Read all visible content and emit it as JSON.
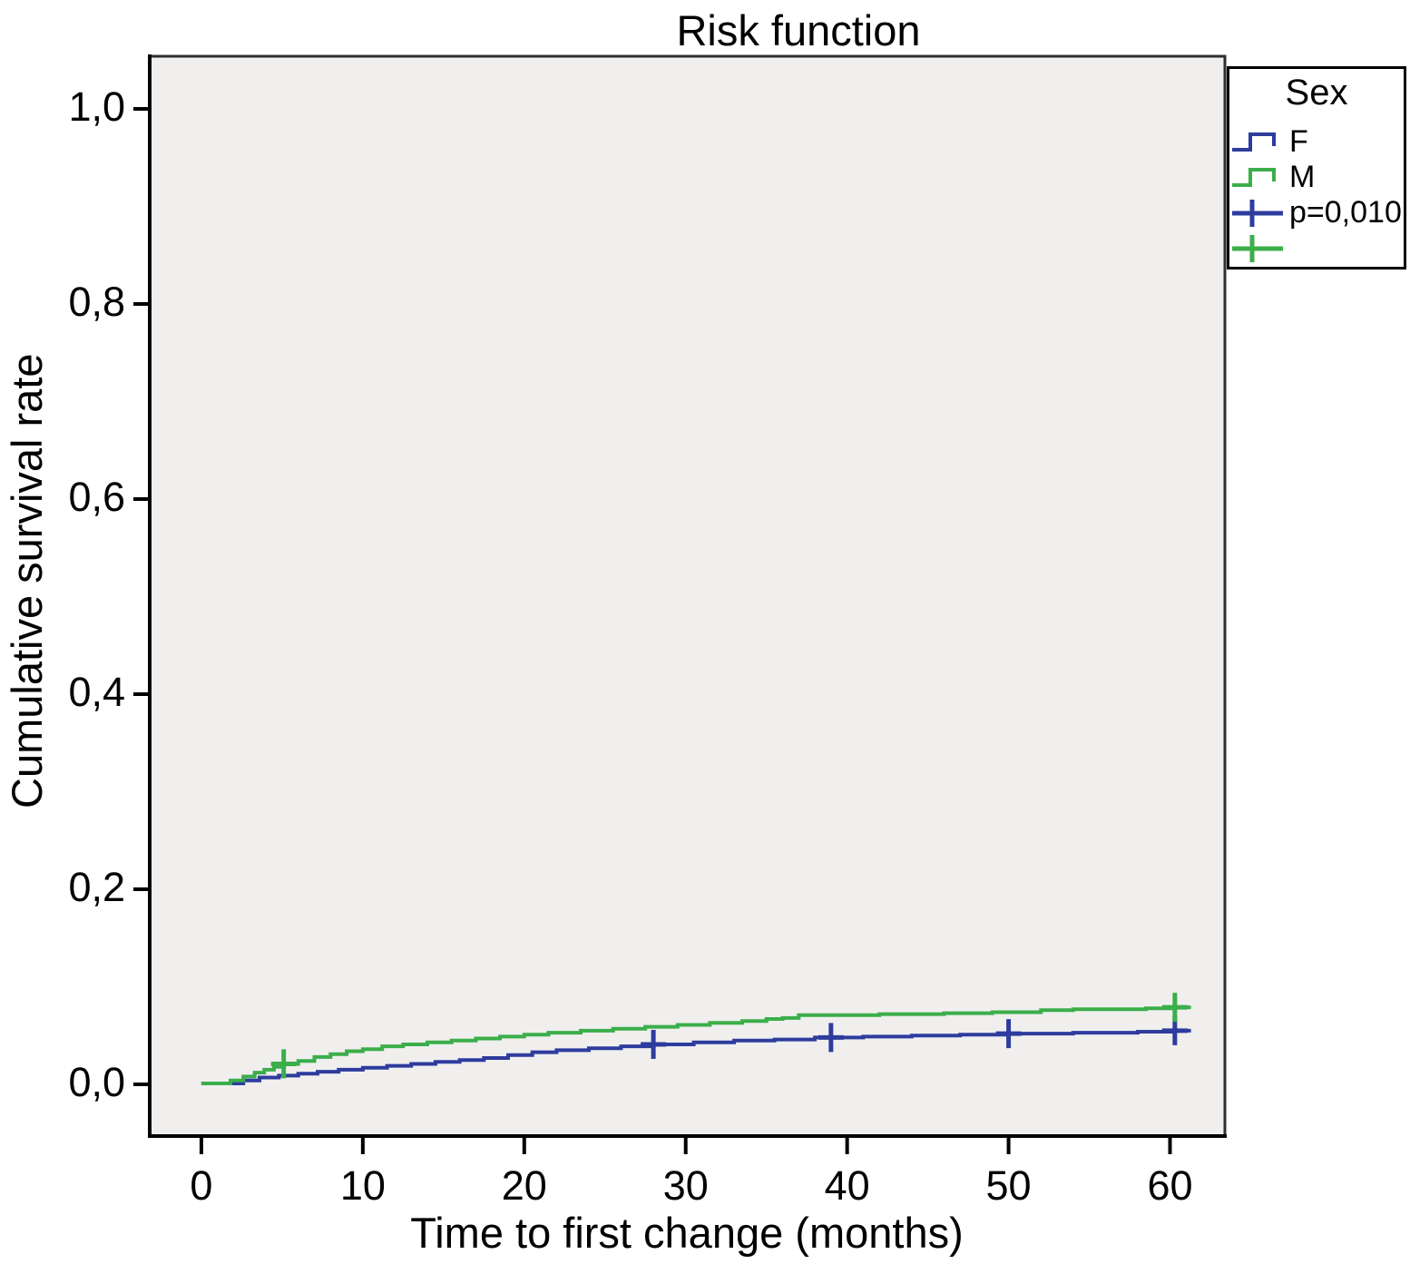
{
  "figure": {
    "title": "Risk function",
    "x_axis_label": "Time to first change (months)",
    "y_axis_label": "Cumulative survival rate",
    "legend": {
      "title": "Sex",
      "items": [
        {
          "label": "F",
          "symbol": "step-line",
          "color": "#2e3c9e"
        },
        {
          "label": "M",
          "symbol": "step-line",
          "color": "#3bae49"
        },
        {
          "label": "p=0,010",
          "symbol": "censor-cross",
          "color": "#2e3c9e"
        },
        {
          "label": "",
          "symbol": "censor-cross",
          "color": "#3bae49"
        }
      ]
    }
  },
  "chart_data": {
    "type": "line",
    "subtype": "kaplan-meier-step-risk-function",
    "title": "Risk function",
    "xlabel": "Time to first change (months)",
    "ylabel": "Cumulative survival rate",
    "x_ticks": [
      0,
      10,
      20,
      30,
      40,
      50,
      60
    ],
    "x_tick_labels": [
      "0",
      "10",
      "20",
      "30",
      "40",
      "50",
      "60"
    ],
    "y_ticks": [
      0,
      0.2,
      0.4,
      0.6,
      0.8,
      1.0
    ],
    "y_tick_labels": [
      "0,0",
      "0,2",
      "0,4",
      "0,6",
      "0,8",
      "1,0"
    ],
    "xlim": [
      -3.2,
      63.4
    ],
    "ylim": [
      -0.053,
      1.054
    ],
    "grid": false,
    "plot_background": "#f0efee",
    "legend_position": "top-right-outside",
    "p_value": "p=0,010",
    "series": [
      {
        "name": "F",
        "color": "#2e3c9e",
        "step_points": [
          [
            0,
            0.001
          ],
          [
            2.6,
            0.004
          ],
          [
            3.6,
            0.007
          ],
          [
            4.8,
            0.009
          ],
          [
            6,
            0.011
          ],
          [
            7.2,
            0.013
          ],
          [
            8.5,
            0.015
          ],
          [
            10,
            0.017
          ],
          [
            11.5,
            0.019
          ],
          [
            13,
            0.021
          ],
          [
            14.5,
            0.023
          ],
          [
            16,
            0.025
          ],
          [
            17.5,
            0.027
          ],
          [
            19,
            0.03
          ],
          [
            20.5,
            0.033
          ],
          [
            22,
            0.035
          ],
          [
            24,
            0.037
          ],
          [
            26,
            0.039
          ],
          [
            28,
            0.041
          ],
          [
            30.5,
            0.043
          ],
          [
            33,
            0.045
          ],
          [
            35.5,
            0.046
          ],
          [
            38,
            0.048
          ],
          [
            41,
            0.049
          ],
          [
            44,
            0.05
          ],
          [
            47,
            0.051
          ],
          [
            50,
            0.052
          ],
          [
            54,
            0.053
          ],
          [
            58,
            0.054
          ],
          [
            60.3,
            0.055
          ]
        ],
        "line_end_x": 61.3,
        "censor_marks": [
          [
            28,
            0.041
          ],
          [
            39,
            0.048
          ],
          [
            50,
            0.052
          ],
          [
            60.3,
            0.055
          ]
        ]
      },
      {
        "name": "M",
        "color": "#3bae49",
        "step_points": [
          [
            0,
            0.001
          ],
          [
            1.8,
            0.004
          ],
          [
            2.6,
            0.008
          ],
          [
            3.3,
            0.012
          ],
          [
            3.9,
            0.015
          ],
          [
            4.5,
            0.018
          ],
          [
            5.1,
            0.021
          ],
          [
            6,
            0.024
          ],
          [
            7,
            0.028
          ],
          [
            8,
            0.031
          ],
          [
            9,
            0.034
          ],
          [
            10,
            0.036
          ],
          [
            11.2,
            0.039
          ],
          [
            12.5,
            0.041
          ],
          [
            14,
            0.043
          ],
          [
            15.5,
            0.045
          ],
          [
            17,
            0.047
          ],
          [
            18.5,
            0.049
          ],
          [
            20,
            0.051
          ],
          [
            21.5,
            0.053
          ],
          [
            23.5,
            0.055
          ],
          [
            25.5,
            0.057
          ],
          [
            27.5,
            0.059
          ],
          [
            29.5,
            0.061
          ],
          [
            31.5,
            0.063
          ],
          [
            33.5,
            0.065
          ],
          [
            35,
            0.067
          ],
          [
            36,
            0.068
          ],
          [
            37,
            0.071
          ],
          [
            42,
            0.072
          ],
          [
            46,
            0.073
          ],
          [
            49,
            0.074
          ],
          [
            52,
            0.076
          ],
          [
            54,
            0.077
          ],
          [
            58.5,
            0.078
          ],
          [
            60.3,
            0.079
          ]
        ],
        "line_end_x": 61.3,
        "censor_marks": [
          [
            5.1,
            0.021
          ],
          [
            60.3,
            0.079
          ]
        ]
      }
    ]
  }
}
